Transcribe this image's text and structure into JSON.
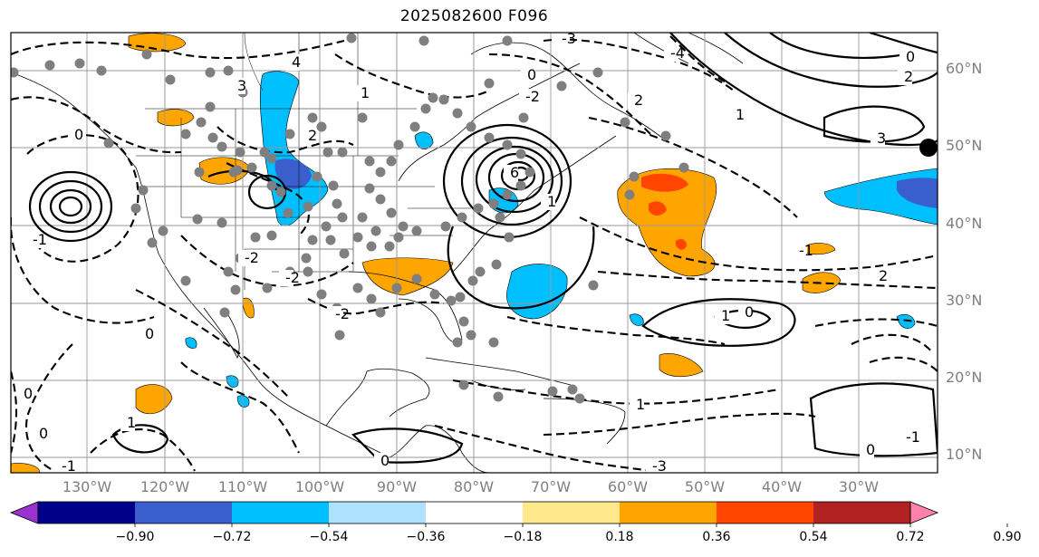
{
  "title": "2025082600 F096",
  "map": {
    "projection": "lat-lon",
    "lon_range": [
      -140,
      -17
    ],
    "lat_range": [
      8,
      65
    ],
    "lat_labels": [
      "60°N",
      "50°N",
      "40°N",
      "30°N",
      "20°N",
      "10°N"
    ],
    "lon_labels": [
      "130°W",
      "120°W",
      "110°W",
      "100°W",
      "90°W",
      "80°W",
      "70°W",
      "60°W",
      "50°W",
      "40°W",
      "30°W"
    ],
    "contour_labels": [
      "4",
      "3",
      "1",
      "2",
      "0",
      "-1",
      "-2",
      "6",
      "1",
      "0",
      "2",
      "3",
      "2",
      "1",
      "0",
      "-1",
      "2",
      "1",
      "0",
      "1",
      "-1",
      "0",
      "0",
      "0",
      "1",
      "0",
      "0",
      "-1",
      "-3",
      "-4",
      "-2",
      "-2",
      "-2",
      "-3"
    ]
  },
  "colorbar": {
    "ticks": [
      "−0.90",
      "−0.72",
      "−0.54",
      "−0.36",
      "−0.18",
      "0.18",
      "0.36",
      "0.54",
      "0.72",
      "0.90"
    ],
    "colors": [
      "#9a32cd",
      "#00008b",
      "#3a5fcd",
      "#00bfff",
      "#b0e2ff",
      "#ffffff",
      "#ffe98a",
      "#ffa500",
      "#ff4500",
      "#b22222",
      "#ff82ab"
    ]
  }
}
